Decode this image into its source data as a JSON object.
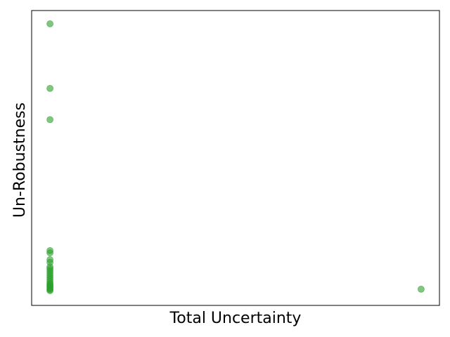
{
  "chart_data": {
    "type": "scatter",
    "title": "",
    "xlabel": "Total Uncertainty",
    "ylabel": "Un-Robustness",
    "xlim": [
      0,
      1
    ],
    "ylim": [
      0,
      1
    ],
    "grid": false,
    "legend": "none",
    "xticks": [],
    "yticks": [],
    "marker_color": "#2ca02c",
    "marker_alpha": 0.6,
    "series": [
      {
        "x": [
          0.045,
          0.045,
          0.045,
          0.045,
          0.045,
          0.045,
          0.045,
          0.045,
          0.045,
          0.045,
          0.045,
          0.045,
          0.045,
          0.045,
          0.045,
          0.045,
          0.045,
          0.045,
          0.045,
          0.045,
          0.045,
          0.045,
          0.045,
          0.955
        ],
        "y": [
          0.955,
          0.736,
          0.63,
          0.186,
          0.178,
          0.155,
          0.146,
          0.131,
          0.124,
          0.117,
          0.11,
          0.102,
          0.095,
          0.088,
          0.081,
          0.074,
          0.067,
          0.06,
          0.053,
          0.05,
          0.057,
          0.064,
          0.071,
          0.055
        ]
      }
    ]
  }
}
